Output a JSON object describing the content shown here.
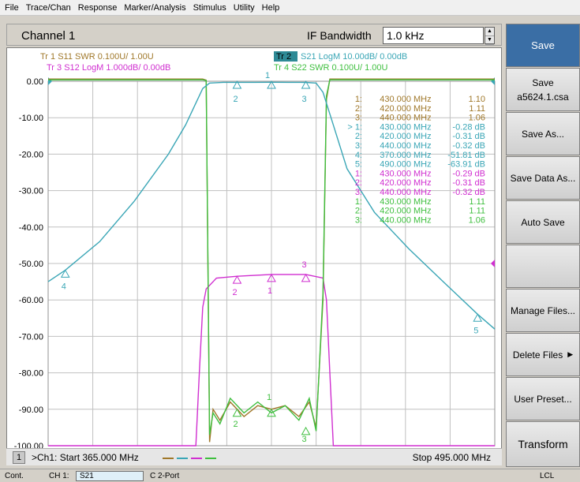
{
  "menubar": [
    "File",
    "Trace/Chan",
    "Response",
    "Marker/Analysis",
    "Stimulus",
    "Utility",
    "Help"
  ],
  "channel": {
    "title": "Channel 1",
    "ifbw_label": "IF Bandwidth",
    "ifbw_value": "1.0 kHz"
  },
  "traces_header": [
    {
      "id": "tr1",
      "text": "Tr  1  S11 SWR 0.100U/  1.00U",
      "color": "#a0782a"
    },
    {
      "id": "tr2",
      "badge": "Tr 2",
      "text": "S21 LogM 10.00dB/  0.00dB",
      "color": "#3aa6b6"
    },
    {
      "id": "tr3",
      "text": "Tr  3  S12 LogM 1.000dB/  0.00dB",
      "color": "#d02fd0"
    },
    {
      "id": "tr4",
      "text": "Tr  4  S22 SWR 0.100U/  1.00U",
      "color": "#3fbf3f"
    }
  ],
  "y_axis_labels": [
    "0.00",
    "-10.00",
    "-20.00",
    "-30.00",
    "-40.00",
    "-50.00",
    "-60.00",
    "-70.00",
    "-80.00",
    "-90.00",
    "-100.00"
  ],
  "marker_table": [
    {
      "no": "1:",
      "freq": "430.000",
      "unit": "MHz",
      "val": "1.10",
      "color": "#a0782a"
    },
    {
      "no": "2:",
      "freq": "420.000",
      "unit": "MHz",
      "val": "1.11",
      "color": "#a0782a"
    },
    {
      "no": "3:",
      "freq": "440.000",
      "unit": "MHz",
      "val": "1.06",
      "color": "#a0782a"
    },
    {
      "no": "> 1:",
      "freq": "430.000",
      "unit": "MHz",
      "val": "-0.28 dB",
      "color": "#3aa6b6"
    },
    {
      "no": "2:",
      "freq": "420.000",
      "unit": "MHz",
      "val": "-0.31 dB",
      "color": "#3aa6b6"
    },
    {
      "no": "3:",
      "freq": "440.000",
      "unit": "MHz",
      "val": "-0.32 dB",
      "color": "#3aa6b6"
    },
    {
      "no": "4:",
      "freq": "370.000",
      "unit": "MHz",
      "val": "-51.81 dB",
      "color": "#3aa6b6"
    },
    {
      "no": "5:",
      "freq": "490.000",
      "unit": "MHz",
      "val": "-63.91 dB",
      "color": "#3aa6b6"
    },
    {
      "no": "1:",
      "freq": "430.000",
      "unit": "MHz",
      "val": "-0.29 dB",
      "color": "#d02fd0"
    },
    {
      "no": "2:",
      "freq": "420.000",
      "unit": "MHz",
      "val": "-0.31 dB",
      "color": "#d02fd0"
    },
    {
      "no": "3:",
      "freq": "440.000",
      "unit": "MHz",
      "val": "-0.32 dB",
      "color": "#d02fd0"
    },
    {
      "no": "1:",
      "freq": "430.000",
      "unit": "MHz",
      "val": "1.11",
      "color": "#3fbf3f"
    },
    {
      "no": "2:",
      "freq": "420.000",
      "unit": "MHz",
      "val": "1.11",
      "color": "#3fbf3f"
    },
    {
      "no": "3:",
      "freq": "440.000",
      "unit": "MHz",
      "val": "1.06",
      "color": "#3fbf3f"
    }
  ],
  "markers_on_plot": [
    {
      "label": "2",
      "color": "#3aa6b6"
    },
    {
      "label": "3",
      "color": "#3aa6b6"
    },
    {
      "label": "4",
      "color": "#3aa6b6"
    },
    {
      "label": "5",
      "color": "#3aa6b6"
    },
    {
      "label": "1",
      "color": "#3aa6b6"
    },
    {
      "label": "2",
      "color": "#d02fd0"
    },
    {
      "label": "1",
      "color": "#d02fd0"
    },
    {
      "label": "3",
      "color": "#d02fd0"
    },
    {
      "label": "1",
      "color": "#3fbf3f"
    },
    {
      "label": "2",
      "color": "#3fbf3f"
    },
    {
      "label": "3",
      "color": "#3fbf3f"
    }
  ],
  "stimulus": {
    "ch_number": "1",
    "start": ">Ch1: Start  365.000 MHz",
    "stop": "Stop  495.000 MHz",
    "swatch_colors": [
      "#a0782a",
      "#3aa6b6",
      "#d02fd0",
      "#3fbf3f"
    ]
  },
  "softkeys": [
    {
      "label": "Save",
      "header": true
    },
    {
      "label": "Save",
      "sub": "a5624.1.csa"
    },
    {
      "label": "Save As..."
    },
    {
      "label": "Save Data As..."
    },
    {
      "label": "Auto Save"
    },
    {
      "label": ""
    },
    {
      "label": "Manage Files..."
    },
    {
      "label": "Delete Files",
      "arrow": "▶"
    },
    {
      "label": "User Preset..."
    },
    {
      "label": "Transform"
    }
  ],
  "bottom_status": {
    "mode": "Cont.",
    "channel": "CH 1:",
    "meas": "S21",
    "cal": "C  2-Port",
    "lcl": "LCL"
  },
  "chart_data": {
    "type": "line",
    "x_range": [
      365,
      495
    ],
    "x_unit": "MHz",
    "ylim": [
      -100,
      0
    ],
    "y_unit": "dB",
    "grid": true,
    "series": [
      {
        "name": "S21 LogM",
        "color": "#3aa6b6",
        "x": [
          365,
          370,
          380,
          390,
          400,
          405,
          408,
          410,
          412,
          416,
          420,
          425,
          430,
          435,
          440,
          443,
          445,
          448,
          452,
          460,
          470,
          480,
          490,
          495
        ],
        "y": [
          -55,
          -51.81,
          -44,
          -33,
          -20,
          -12,
          -6,
          -2,
          -0.5,
          -0.31,
          -0.31,
          -0.3,
          -0.28,
          -0.3,
          -0.32,
          -0.5,
          -3,
          -12,
          -24,
          -36,
          -46,
          -55,
          -63.91,
          -68
        ]
      },
      {
        "name": "S12 LogM",
        "color": "#d02fd0",
        "x": [
          365,
          408,
          409,
          410,
          411,
          414,
          420,
          430,
          440,
          445,
          446,
          447,
          448,
          449,
          495
        ],
        "y": [
          -100,
          -100,
          -80,
          -62,
          -57,
          -54,
          -53.5,
          -53,
          -53,
          -54,
          -60,
          -80,
          -100,
          -100,
          -100
        ]
      },
      {
        "name": "S11 SWR",
        "color": "#a0782a",
        "x": [
          365,
          410,
          411,
          412,
          413,
          415,
          418,
          422,
          426,
          430,
          434,
          438,
          441,
          443,
          445,
          446,
          447,
          495
        ],
        "y": [
          0.6,
          0.6,
          0.3,
          -99,
          -90,
          -93,
          -88,
          -92,
          -89,
          -90,
          -89,
          -92,
          -88,
          -95,
          -60,
          -5,
          0.6,
          0.6
        ]
      },
      {
        "name": "S22 SWR",
        "color": "#3fbf3f",
        "x": [
          365,
          410,
          411,
          412,
          413,
          415,
          418,
          422,
          426,
          430,
          434,
          438,
          441,
          443,
          445,
          446,
          447,
          495
        ],
        "y": [
          0.4,
          0.4,
          0.2,
          -97,
          -91,
          -94,
          -87,
          -91,
          -88,
          -91,
          -89,
          -93,
          -87,
          -96,
          -58,
          -4,
          0.4,
          0.4
        ]
      }
    ]
  }
}
